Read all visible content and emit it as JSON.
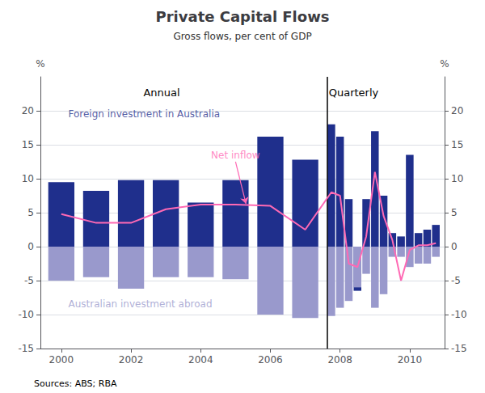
{
  "chart_data": {
    "type": "bar",
    "title": "Private Capital Flows",
    "subtitle": "Gross flows, per cent of GDP",
    "sources": "Sources: ABS; RBA",
    "x": [
      2000,
      2001,
      2002,
      2003,
      2004,
      2005,
      2006,
      2007,
      2007.75,
      2008.0,
      2008.25,
      2008.5,
      2008.75,
      2009.0,
      2009.25,
      2009.5,
      2009.75,
      2010.0,
      2010.25,
      2010.5,
      2010.75
    ],
    "series": [
      {
        "type": "bar",
        "color": "#1F2F8C",
        "values": [
          9.5,
          8.2,
          9.8,
          9.8,
          6.5,
          9.8,
          16.2,
          12.8,
          18.0,
          16.2,
          7.0,
          -6.5,
          7.0,
          17.0,
          7.5,
          2.0,
          1.5,
          13.5,
          2.0,
          2.5,
          3.2
        ]
      },
      {
        "type": "bar",
        "color": "#9999CC",
        "values": [
          -5.0,
          -4.5,
          -6.2,
          -4.5,
          -4.5,
          -4.8,
          -10.0,
          -10.5,
          -10.2,
          -9.0,
          -8.0,
          -6.0,
          -4.0,
          -9.0,
          -7.0,
          -1.5,
          -1.5,
          -3.0,
          -2.5,
          -2.5,
          -1.5
        ]
      },
      {
        "type": "line",
        "color": "#FF69B4",
        "values": [
          4.8,
          3.5,
          3.5,
          5.5,
          6.2,
          6.2,
          6.0,
          2.5,
          8.0,
          7.5,
          -2.5,
          -3.0,
          1.5,
          11.0,
          4.5,
          1.0,
          -5.0,
          -0.5,
          0.2,
          0.2,
          0.5
        ]
      }
    ],
    "xlim": [
      1999.4,
      2011.0
    ],
    "xticks": [
      2000,
      2002,
      2004,
      2006,
      2008,
      2010
    ],
    "ylim": [
      -15,
      25
    ],
    "yticks": [
      -15,
      -10,
      -5,
      0,
      5,
      10,
      15,
      20
    ],
    "y2lim": [
      -15,
      25
    ],
    "y2ticks": [
      -15,
      -10,
      -5,
      0,
      5,
      10,
      15,
      20
    ],
    "y_label": "%",
    "y2_label": "%",
    "grid": true,
    "divider": 2007.62,
    "section_labels": [
      "Annual",
      "Quarterly"
    ],
    "annotations": [
      {
        "text": "Foreign investment in Australia",
        "xytext": [
          2000.2,
          19.5
        ],
        "color": "#1F2F8C"
      },
      {
        "text": "Australian investment abroad",
        "xytext": [
          2000.2,
          -8.5
        ],
        "color": "#9999CC"
      },
      {
        "text": "Net inflow",
        "xytext": [
          2005.0,
          12.5
        ],
        "xy": [
          2005.3,
          6.3
        ],
        "color": "#FF69B4"
      }
    ]
  }
}
